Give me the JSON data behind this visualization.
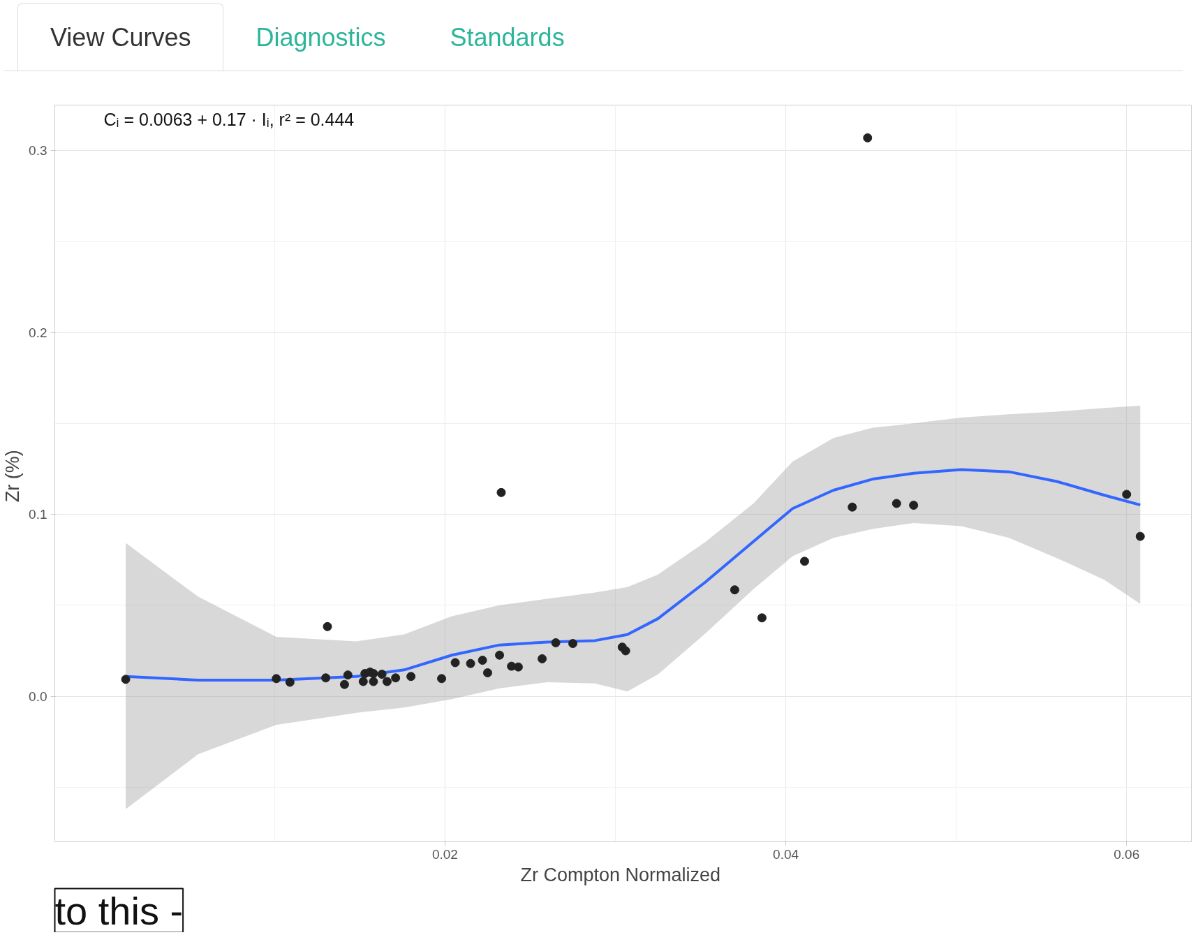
{
  "chart_data": {
    "type": "scatter",
    "xlabel": "Zr  Compton Normalized",
    "ylabel": "Zr  (%)",
    "annotations": [
      "View Curves",
      "Diagnostics",
      "Standards",
      "Cᵢ = 0.0063 + 0.17 · Iᵢ,  r² = 0.444",
      "to this -"
    ],
    "xlim": [
      -0.0029,
      0.0638
    ],
    "ylim": [
      -0.08,
      0.325
    ],
    "xticks": [
      0.02,
      0.04,
      0.06
    ],
    "yticks": [
      {
        "value": 0.0,
        "label": "0.0"
      },
      {
        "value": 0.1,
        "label": "0.1"
      },
      {
        "value": 0.2,
        "label": "0.2"
      },
      {
        "value": 0.3,
        "label": "0.3"
      }
    ],
    "grid": true,
    "marker": "circle",
    "series": [
      {
        "color": "#222222",
        "x": [
          0.00126,
          0.0101,
          0.0109,
          0.013,
          0.0131,
          0.0141,
          0.0143,
          0.0152,
          0.0153,
          0.0156,
          0.0158,
          0.0158,
          0.0163,
          0.0166,
          0.0171,
          0.018,
          0.0198,
          0.0206,
          0.0215,
          0.0222,
          0.0225,
          0.0232,
          0.0233,
          0.0239,
          0.0243,
          0.0257,
          0.0265,
          0.0275,
          0.0304,
          0.0306,
          0.037,
          0.0386,
          0.0411,
          0.0439,
          0.0448,
          0.0465,
          0.0475,
          0.06,
          0.0608
        ],
        "values": [
          0.0093,
          0.0097,
          0.0077,
          0.0101,
          0.0383,
          0.0065,
          0.0117,
          0.0081,
          0.0125,
          0.0133,
          0.0081,
          0.0125,
          0.0121,
          0.0081,
          0.0101,
          0.0109,
          0.0097,
          0.0185,
          0.018,
          0.0198,
          0.0129,
          0.0226,
          0.112,
          0.0165,
          0.0161,
          0.0206,
          0.0294,
          0.029,
          0.027,
          0.025,
          0.0585,
          0.0431,
          0.0742,
          0.104,
          0.307,
          0.106,
          0.105,
          0.111,
          0.0879
        ]
      },
      {
        "type": "line",
        "color": "#3366ff",
        "marker": "none",
        "x": [
          0.00126,
          0.0055,
          0.0101,
          0.0148,
          0.0176,
          0.0204,
          0.0232,
          0.026,
          0.0288,
          0.0307,
          0.0325,
          0.0353,
          0.0381,
          0.0404,
          0.0428,
          0.0451,
          0.0475,
          0.0503,
          0.0531,
          0.0559,
          0.0587,
          0.0608
        ],
        "values": [
          0.0109,
          0.0089,
          0.0089,
          0.0109,
          0.0145,
          0.0226,
          0.0282,
          0.0298,
          0.0306,
          0.0339,
          0.0427,
          0.0629,
          0.0851,
          0.1032,
          0.1133,
          0.1194,
          0.1226,
          0.1246,
          0.1234,
          0.1181,
          0.1105,
          0.1052
        ],
        "lower": [
          -0.0621,
          -0.0319,
          -0.0157,
          -0.0091,
          -0.0062,
          -0.0016,
          0.0044,
          0.0077,
          0.007,
          0.0026,
          0.012,
          0.0347,
          0.0589,
          0.077,
          0.0871,
          0.092,
          0.0952,
          0.0935,
          0.0871,
          0.076,
          0.064,
          0.0508
        ],
        "upper": [
          0.0843,
          0.0548,
          0.0327,
          0.0302,
          0.034,
          0.044,
          0.05,
          0.0536,
          0.057,
          0.06,
          0.0669,
          0.085,
          0.106,
          0.129,
          0.142,
          0.1476,
          0.15,
          0.1532,
          0.155,
          0.1565,
          0.1585,
          0.1597
        ]
      }
    ]
  }
}
